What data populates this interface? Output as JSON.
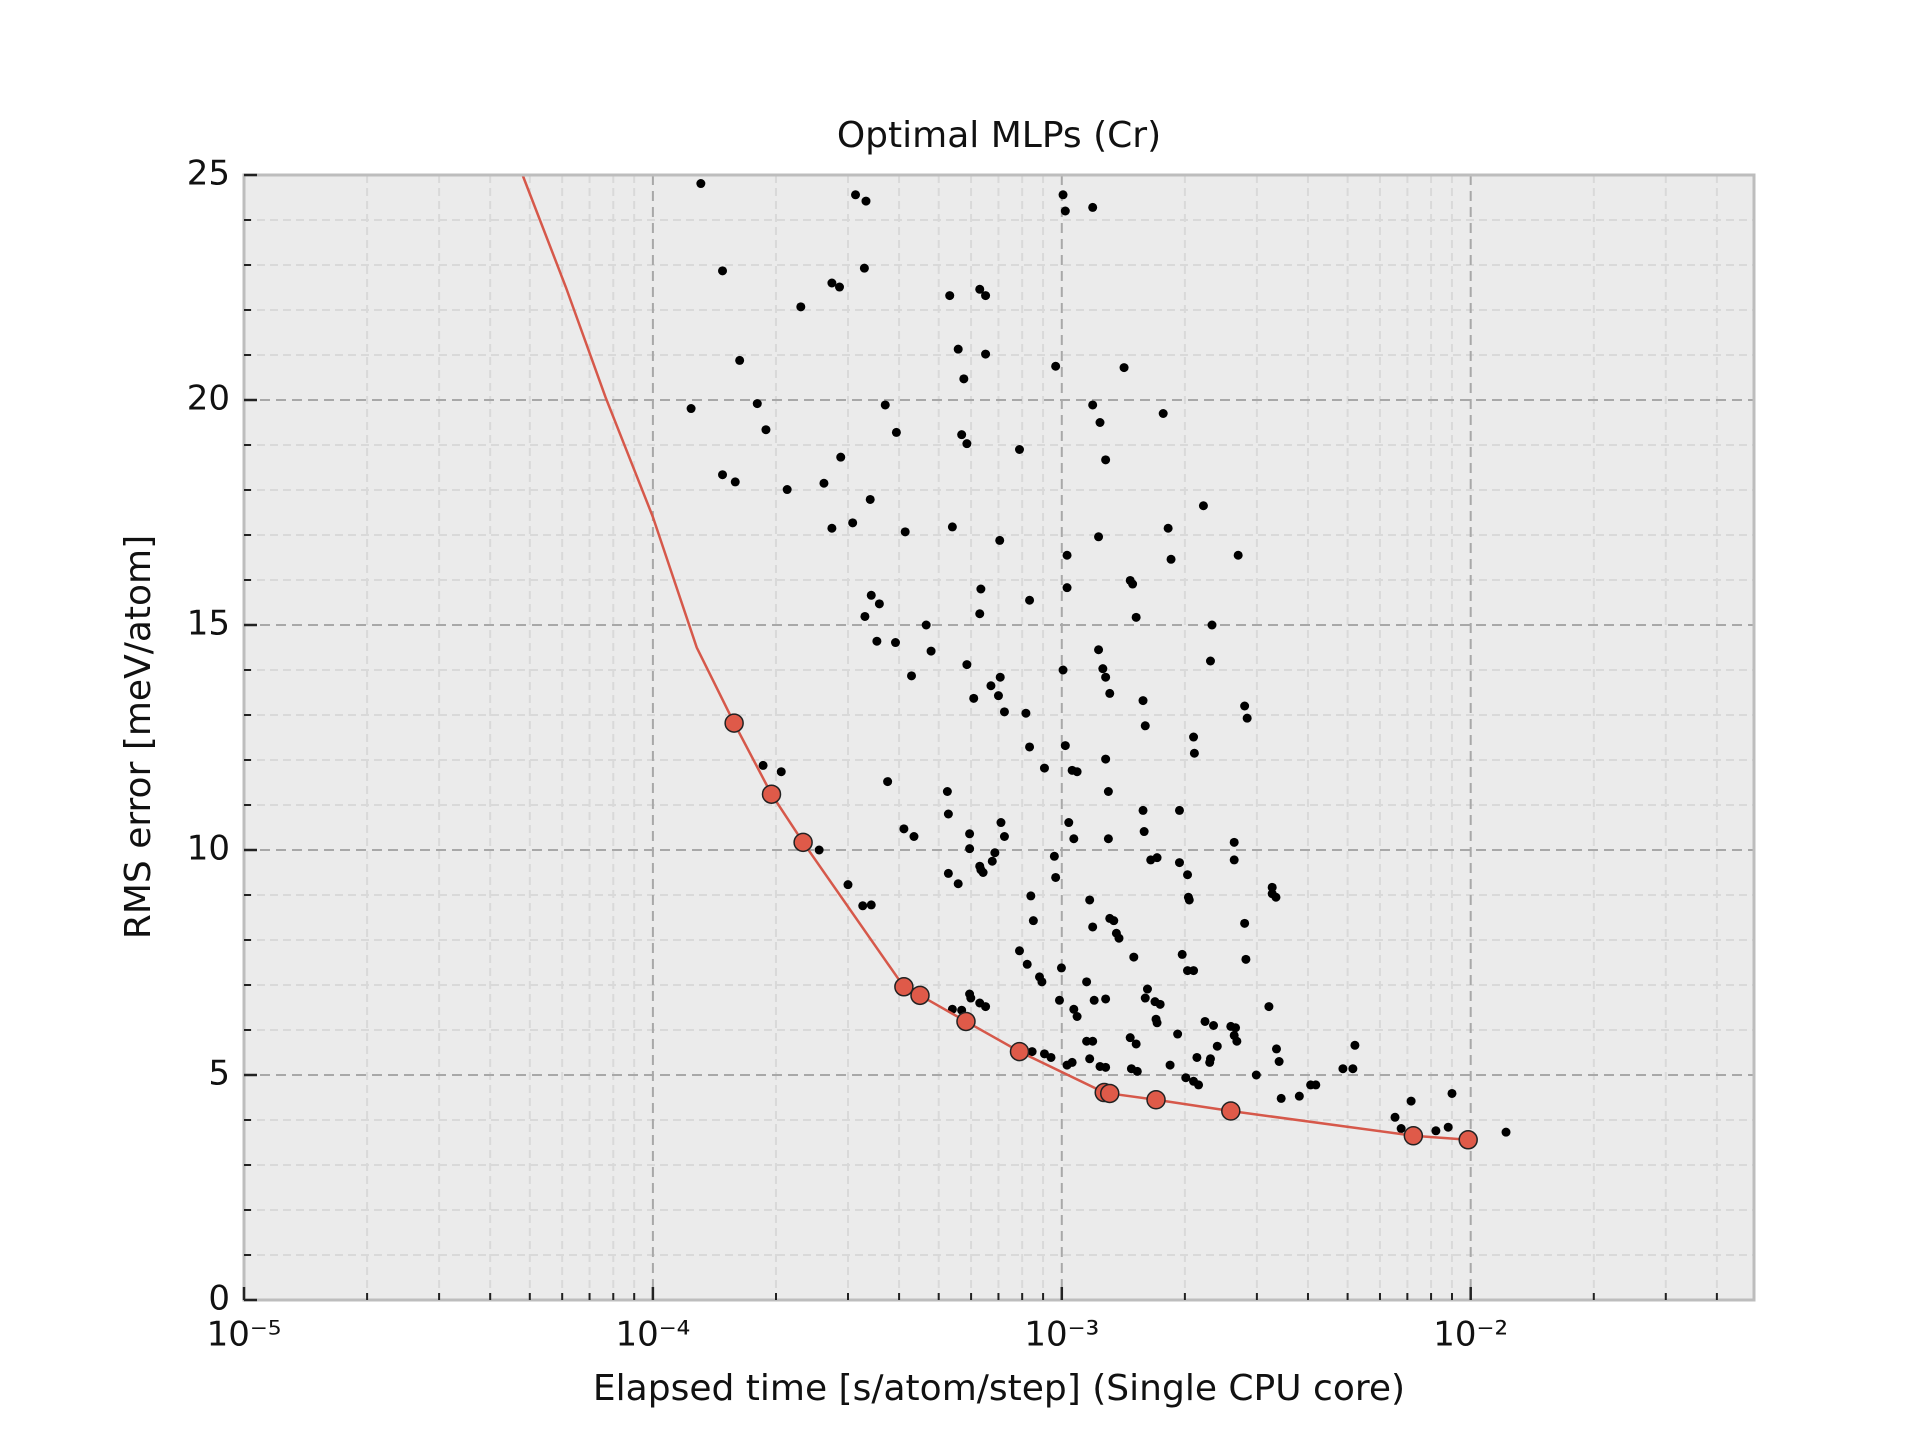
{
  "chart_data": {
    "type": "scatter",
    "title": "Optimal MLPs (Cr)",
    "x_label": "Elapsed time [s/atom/step] (Single CPU core)",
    "y_label": "RMS error [meV/atom]",
    "xscale": "log",
    "grid": true,
    "background": "#ebebeb",
    "xlim": [
      1e-05,
      0.0493
    ],
    "ylim": [
      0,
      25
    ],
    "xticks": [
      {
        "value": 1e-05,
        "label": "10⁻⁵"
      },
      {
        "value": 0.0001,
        "label": "10⁻⁴"
      },
      {
        "value": 0.001,
        "label": "10⁻³"
      },
      {
        "value": 0.01,
        "label": "10⁻²"
      }
    ],
    "xminorticks": [
      2e-05,
      3e-05,
      4e-05,
      5e-05,
      6e-05,
      7e-05,
      8e-05,
      9e-05,
      0.0002,
      0.0003,
      0.0004,
      0.0005,
      0.0006,
      0.0007,
      0.0008,
      0.0009,
      0.002,
      0.003,
      0.004,
      0.005,
      0.006,
      0.007,
      0.008,
      0.009,
      0.02,
      0.03,
      0.04
    ],
    "yticks": [
      0,
      5,
      10,
      15,
      20,
      25
    ],
    "yminorticks": [
      1,
      2,
      3,
      4,
      6,
      7,
      8,
      9,
      11,
      12,
      13,
      14,
      16,
      17,
      18,
      19,
      21,
      22,
      23,
      24
    ],
    "series": [
      {
        "style": "dots",
        "color": "#000000",
        "x": [
          0.000131,
          0.000313,
          0.000332,
          0.001007,
          0.00102,
          0.00119,
          0.000148,
          0.000329,
          0.00023,
          0.000274,
          0.000286,
          0.000532,
          0.00063,
          0.000651,
          0.000163,
          0.000558,
          0.000651,
          0.000966,
          0.00142,
          0.000576,
          0.000124,
          0.00018,
          0.000189,
          0.00037,
          0.000394,
          0.00119,
          0.00124,
          0.00177,
          0.000569,
          0.000586,
          0.000788,
          0.00128,
          0.000148,
          0.000159,
          0.000213,
          0.000262,
          0.000288,
          0.00034,
          0.00222,
          0.000308,
          0.000274,
          0.000414,
          0.00054,
          0.00182,
          0.000705,
          0.00123,
          0.0027,
          0.00103,
          0.00185,
          0.00147,
          0.00149,
          0.000634,
          0.00103,
          0.000342,
          0.000358,
          0.000834,
          0.00063,
          0.00033,
          0.00152,
          0.000466,
          0.00233,
          0.000353,
          0.000392,
          0.000479,
          0.00123,
          0.00231,
          0.001007,
          0.00126,
          0.00128,
          0.000429,
          0.000586,
          0.000707,
          0.000671,
          0.0007,
          0.000609,
          0.00131,
          0.00158,
          0.0028,
          0.00284,
          0.000724,
          0.000817,
          0.0016,
          0.0021,
          0.00211,
          0.000834,
          0.00102,
          0.00128,
          0.000186,
          0.000206,
          0.000907,
          0.00106,
          0.00109,
          0.000375,
          0.000525,
          0.0013,
          0.00158,
          0.00194,
          0.000528,
          0.00071,
          0.00104,
          0.000411,
          0.000435,
          0.000595,
          0.000724,
          0.00107,
          0.0013,
          0.00159,
          0.000255,
          0.000595,
          0.00264,
          0.00264,
          0.000686,
          0.000676,
          0.000959,
          0.00165,
          0.00171,
          0.00194,
          0.00063,
          0.000634,
          0.000642,
          0.000528,
          0.000558,
          0.000966,
          0.00203,
          0.0003,
          0.00327,
          0.00327,
          0.00334,
          0.00084,
          0.00204,
          0.00205,
          0.000326,
          0.000342,
          0.00117,
          0.000852,
          0.00119,
          0.00131,
          0.00134,
          0.00136,
          0.00138,
          0.0028,
          0.0015,
          0.000788,
          0.000823,
          0.00197,
          0.000998,
          0.000882,
          0.000894,
          0.00203,
          0.0021,
          0.00282,
          0.00115,
          0.00162,
          0.000595,
          0.000599,
          0.00128,
          0.0016,
          0.000987,
          0.0012,
          0.00169,
          0.00174,
          0.00063,
          0.000651,
          0.00321,
          0.00054,
          0.000569,
          0.00107,
          0.00109,
          0.0017,
          0.00171,
          0.00224,
          0.00235,
          0.00259,
          0.00266,
          0.00115,
          0.00119,
          0.00147,
          0.00152,
          0.00264,
          0.00268,
          0.00521,
          0.00192,
          0.0024,
          0.000846,
          0.000907,
          0.000941,
          0.00335,
          0.00117,
          0.00103,
          0.00106,
          0.00231,
          0.0023,
          0.00214,
          0.0034,
          0.00148,
          0.00153,
          0.00184,
          0.00124,
          0.00128,
          0.00487,
          0.00515,
          0.00201,
          0.0021,
          0.00216,
          0.00299,
          0.00406,
          0.00418,
          0.00381,
          0.00344,
          0.00715,
          0.009,
          0.00653,
          0.00676,
          0.00822,
          0.00881,
          0.0122
        ],
        "values": [
          24.81,
          24.56,
          24.42,
          24.56,
          24.2,
          24.28,
          22.87,
          22.93,
          22.07,
          22.6,
          22.51,
          22.32,
          22.46,
          22.32,
          20.88,
          21.13,
          21.02,
          20.75,
          20.72,
          20.47,
          19.81,
          19.92,
          19.34,
          19.89,
          19.28,
          19.89,
          19.5,
          19.7,
          19.23,
          19.03,
          18.9,
          18.67,
          18.34,
          18.18,
          18.01,
          18.15,
          18.73,
          17.79,
          17.65,
          17.27,
          17.15,
          17.07,
          17.18,
          17.15,
          16.88,
          16.96,
          16.55,
          16.55,
          16.46,
          15.99,
          15.91,
          15.8,
          15.83,
          15.66,
          15.47,
          15.55,
          15.25,
          15.19,
          15.17,
          15.0,
          15.0,
          14.64,
          14.61,
          14.42,
          14.45,
          14.2,
          14.0,
          14.03,
          13.84,
          13.87,
          14.12,
          13.84,
          13.65,
          13.43,
          13.37,
          13.48,
          13.32,
          13.2,
          12.93,
          13.07,
          13.04,
          12.76,
          12.51,
          12.15,
          12.29,
          12.32,
          12.02,
          11.88,
          11.74,
          11.82,
          11.77,
          11.74,
          11.52,
          11.3,
          11.3,
          10.88,
          10.88,
          10.8,
          10.61,
          10.61,
          10.47,
          10.3,
          10.36,
          10.3,
          10.25,
          10.25,
          10.41,
          10.0,
          10.03,
          10.17,
          9.78,
          9.94,
          9.75,
          9.86,
          9.78,
          9.83,
          9.72,
          9.64,
          9.56,
          9.5,
          9.48,
          9.25,
          9.39,
          9.45,
          9.23,
          9.17,
          9.03,
          8.95,
          8.98,
          8.95,
          8.89,
          8.76,
          8.78,
          8.89,
          8.43,
          8.29,
          8.48,
          8.43,
          8.15,
          8.04,
          8.37,
          7.62,
          7.76,
          7.46,
          7.68,
          7.38,
          7.18,
          7.07,
          7.32,
          7.32,
          7.57,
          7.07,
          6.91,
          6.8,
          6.71,
          6.69,
          6.71,
          6.66,
          6.66,
          6.63,
          6.57,
          6.6,
          6.52,
          6.52,
          6.46,
          6.44,
          6.46,
          6.3,
          6.24,
          6.16,
          6.19,
          6.1,
          6.08,
          6.05,
          5.75,
          5.75,
          5.83,
          5.69,
          5.88,
          5.75,
          5.66,
          5.91,
          5.64,
          5.52,
          5.47,
          5.39,
          5.58,
          5.36,
          5.22,
          5.28,
          5.36,
          5.28,
          5.39,
          5.3,
          5.14,
          5.08,
          5.22,
          5.19,
          5.17,
          5.14,
          5.14,
          4.94,
          4.86,
          4.78,
          5.0,
          4.78,
          4.78,
          4.53,
          4.48,
          4.42,
          4.59,
          4.06,
          3.81,
          3.76,
          3.84,
          3.73
        ]
      },
      {
        "style": "line",
        "color": "#d6584a",
        "x": [
          4.8e-05,
          6.13e-05,
          7.66e-05,
          0.0001,
          0.000128,
          0.000158,
          0.000195,
          0.000233,
          0.000411,
          0.00045,
          0.000583,
          0.000788,
          0.00127,
          0.00131,
          0.0017,
          0.00259,
          0.00724,
          0.00986
        ],
        "values": [
          25,
          22.5,
          20.06,
          17.4,
          14.5,
          12.82,
          11.24,
          10.17,
          6.96,
          6.77,
          6.19,
          5.52,
          4.61,
          4.59,
          4.45,
          4.2,
          3.65,
          3.56
        ]
      },
      {
        "style": "markers",
        "color": "#df5a49",
        "x": [
          0.000158,
          0.000195,
          0.000233,
          0.000411,
          0.00045,
          0.000583,
          0.000788,
          0.00127,
          0.00131,
          0.0017,
          0.00259,
          0.00724,
          0.00986
        ],
        "values": [
          12.82,
          11.24,
          10.17,
          6.96,
          6.77,
          6.19,
          5.52,
          4.61,
          4.59,
          4.45,
          4.2,
          3.65,
          3.56
        ]
      }
    ]
  }
}
